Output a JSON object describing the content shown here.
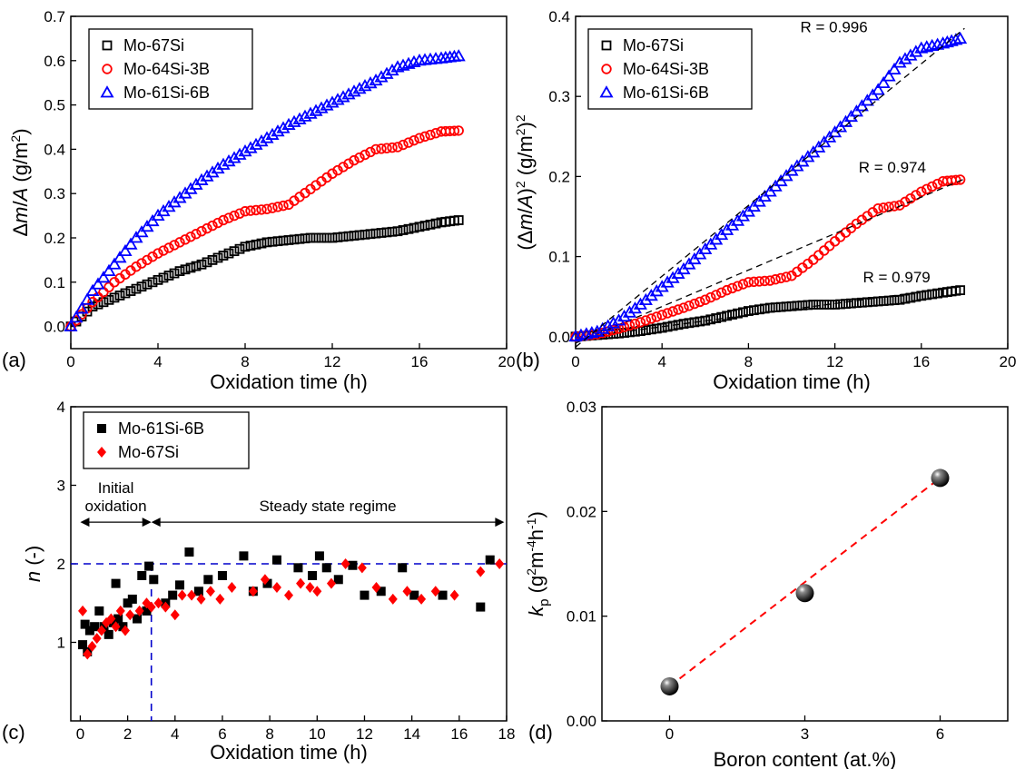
{
  "chart_data": [
    {
      "panel": "(a)",
      "type": "scatter",
      "xlabel": "Oxidation time (h)",
      "ylabel": "Δm/A (g/m²)",
      "xlim": [
        0,
        20
      ],
      "ylim": [
        -0.05,
        0.7
      ],
      "xticks": [
        0,
        4,
        8,
        12,
        16,
        20
      ],
      "yticks": [
        0.0,
        0.1,
        0.2,
        0.3,
        0.4,
        0.5,
        0.6,
        0.7
      ],
      "legend": "top-left",
      "series": [
        {
          "name": "Mo-67Si",
          "marker": "square",
          "color": "#000000",
          "x": [
            0,
            1,
            2,
            3,
            4,
            5,
            6,
            7,
            8,
            9,
            10,
            11,
            12,
            13,
            14,
            15,
            16,
            17,
            17.8
          ],
          "y": [
            0,
            0.045,
            0.065,
            0.085,
            0.105,
            0.125,
            0.14,
            0.16,
            0.18,
            0.19,
            0.195,
            0.2,
            0.2,
            0.205,
            0.21,
            0.215,
            0.225,
            0.235,
            0.24
          ]
        },
        {
          "name": "Mo-64Si-3B",
          "marker": "circle",
          "color": "#ff0000",
          "x": [
            0,
            1,
            2,
            3,
            4,
            5,
            6,
            7,
            8,
            9,
            10,
            11,
            12,
            13,
            14,
            15,
            16,
            17,
            17.8
          ],
          "y": [
            0,
            0.055,
            0.1,
            0.135,
            0.165,
            0.19,
            0.215,
            0.24,
            0.26,
            0.265,
            0.275,
            0.31,
            0.345,
            0.375,
            0.4,
            0.405,
            0.425,
            0.44,
            0.442
          ]
        },
        {
          "name": "Mo-61Si-6B",
          "marker": "triangle",
          "color": "#0000ff",
          "x": [
            0,
            1,
            2,
            3,
            4,
            5,
            6,
            7,
            8,
            9,
            10,
            11,
            12,
            13,
            14,
            15,
            16,
            17,
            17.8
          ],
          "y": [
            0,
            0.08,
            0.14,
            0.2,
            0.25,
            0.29,
            0.33,
            0.365,
            0.395,
            0.425,
            0.455,
            0.48,
            0.505,
            0.53,
            0.555,
            0.585,
            0.6,
            0.605,
            0.61
          ]
        }
      ]
    },
    {
      "panel": "(b)",
      "type": "scatter",
      "xlabel": "Oxidation time (h)",
      "ylabel": "(Δm/A)² (g/m²)²",
      "xlim": [
        0,
        20
      ],
      "ylim": [
        -0.015,
        0.4
      ],
      "xticks": [
        0,
        4,
        8,
        12,
        16,
        20
      ],
      "yticks": [
        0.0,
        0.1,
        0.2,
        0.3,
        0.4
      ],
      "legend": "top-left",
      "series": [
        {
          "name": "Mo-67Si",
          "marker": "square",
          "color": "#000000",
          "x": [
            0,
            1,
            2,
            3,
            4,
            5,
            6,
            7,
            8,
            9,
            10,
            11,
            12,
            13,
            14,
            15,
            16,
            17,
            17.8
          ],
          "y": [
            0,
            0.002,
            0.004,
            0.007,
            0.011,
            0.016,
            0.02,
            0.026,
            0.032,
            0.036,
            0.038,
            0.04,
            0.04,
            0.042,
            0.044,
            0.046,
            0.051,
            0.055,
            0.058
          ],
          "fit_line": [
            [
              0,
              -0.002
            ],
            [
              18,
              0.063
            ]
          ],
          "R": "R = 0.979"
        },
        {
          "name": "Mo-64Si-3B",
          "marker": "circle",
          "color": "#ff0000",
          "x": [
            0,
            1,
            2,
            3,
            4,
            5,
            6,
            7,
            8,
            9,
            10,
            11,
            12,
            13,
            14,
            15,
            16,
            17,
            17.8
          ],
          "y": [
            0,
            0.003,
            0.01,
            0.018,
            0.027,
            0.036,
            0.046,
            0.058,
            0.068,
            0.07,
            0.076,
            0.096,
            0.119,
            0.141,
            0.16,
            0.164,
            0.181,
            0.194,
            0.196
          ],
          "fit_line": [
            [
              0,
              -0.008
            ],
            [
              18,
              0.197
            ]
          ],
          "R": "R = 0.974"
        },
        {
          "name": "Mo-61Si-6B",
          "marker": "triangle",
          "color": "#0000ff",
          "x": [
            0,
            1,
            2,
            3,
            4,
            5,
            6,
            7,
            8,
            9,
            10,
            11,
            12,
            13,
            14,
            15,
            16,
            17,
            17.8
          ],
          "y": [
            0,
            0.006,
            0.02,
            0.04,
            0.062,
            0.084,
            0.109,
            0.133,
            0.156,
            0.181,
            0.207,
            0.23,
            0.255,
            0.281,
            0.308,
            0.342,
            0.36,
            0.366,
            0.372
          ],
          "fit_line": [
            [
              0,
              -0.013
            ],
            [
              18,
              0.385
            ]
          ],
          "R": "R = 0.996"
        }
      ]
    },
    {
      "panel": "(c)",
      "type": "scatter",
      "xlabel": "Oxidation time (h)",
      "ylabel": "n (-)",
      "xlim": [
        -0.4,
        18
      ],
      "ylim": [
        0,
        4
      ],
      "xticks": [
        0,
        2,
        4,
        6,
        8,
        10,
        12,
        14,
        16,
        18
      ],
      "yticks": [
        1,
        2,
        3,
        4
      ],
      "legend": "top-left",
      "hline": 2,
      "vline": 3,
      "regions": [
        {
          "label": "Initial\noxidation",
          "from": 0,
          "to": 3
        },
        {
          "label": "Steady state regime",
          "from": 3,
          "to": 17.9
        }
      ],
      "series": [
        {
          "name": "Mo-61Si-6B",
          "marker": "filled-square",
          "color": "#000000",
          "x": [
            0.1,
            0.2,
            0.3,
            0.4,
            0.6,
            0.8,
            1.0,
            1.2,
            1.4,
            1.5,
            1.6,
            1.8,
            2.0,
            2.2,
            2.4,
            2.6,
            2.8,
            2.9,
            3.1,
            3.6,
            3.9,
            4.2,
            4.6,
            5.0,
            5.4,
            6.0,
            6.9,
            7.3,
            7.9,
            8.3,
            9.2,
            9.8,
            10.1,
            10.4,
            10.9,
            11.5,
            12.0,
            12.7,
            13.6,
            14.1,
            15.3,
            16.9,
            17.3
          ],
          "y": [
            0.97,
            1.23,
            0.88,
            1.15,
            1.2,
            1.4,
            1.2,
            1.1,
            1.25,
            1.75,
            1.3,
            1.2,
            1.5,
            1.55,
            1.3,
            1.85,
            1.4,
            1.97,
            1.8,
            1.5,
            1.6,
            1.73,
            2.15,
            1.65,
            1.8,
            1.85,
            2.1,
            1.65,
            1.75,
            2.05,
            1.95,
            1.85,
            2.1,
            1.95,
            1.8,
            1.98,
            1.6,
            1.65,
            1.95,
            1.6,
            1.6,
            1.45,
            2.05
          ]
        },
        {
          "name": "Mo-67Si",
          "marker": "diamond",
          "color": "#ff0000",
          "x": [
            0.1,
            0.3,
            0.5,
            0.7,
            0.9,
            1.1,
            1.3,
            1.5,
            1.7,
            1.9,
            2.1,
            2.5,
            2.8,
            3.0,
            3.3,
            3.6,
            4.0,
            4.3,
            4.7,
            5.1,
            5.5,
            5.9,
            6.4,
            7.3,
            7.8,
            8.3,
            8.8,
            9.3,
            9.7,
            10.0,
            10.6,
            11.2,
            11.9,
            12.5,
            13.2,
            13.8,
            14.4,
            15.0,
            15.8,
            16.9,
            17.7
          ],
          "y": [
            1.4,
            0.85,
            0.95,
            1.05,
            1.15,
            1.25,
            1.3,
            1.2,
            1.4,
            1.15,
            1.35,
            1.4,
            1.5,
            1.45,
            1.5,
            1.45,
            1.35,
            1.6,
            1.6,
            1.55,
            1.65,
            1.55,
            1.7,
            1.65,
            1.8,
            1.7,
            1.6,
            1.75,
            1.7,
            1.65,
            1.75,
            2.0,
            1.95,
            1.7,
            1.55,
            1.65,
            1.55,
            1.65,
            1.6,
            1.9,
            2.0
          ]
        }
      ]
    },
    {
      "panel": "(d)",
      "type": "scatter",
      "xlabel": "Boron content (at.%)",
      "ylabel": "kp (g²m⁻⁴h⁻¹)",
      "xlim": [
        -1.5,
        7.5
      ],
      "ylim": [
        0,
        0.03
      ],
      "xticks": [
        0,
        3,
        6
      ],
      "yticks": [
        0.0,
        0.01,
        0.02,
        0.03
      ],
      "series": [
        {
          "marker": "sphere",
          "color": "#000000",
          "x": [
            0,
            3,
            6
          ],
          "y": [
            0.0033,
            0.0122,
            0.0232
          ]
        }
      ],
      "trend_line": {
        "color": "#ff0000",
        "from": [
          0,
          0.0033
        ],
        "to": [
          6,
          0.0232
        ]
      }
    }
  ]
}
